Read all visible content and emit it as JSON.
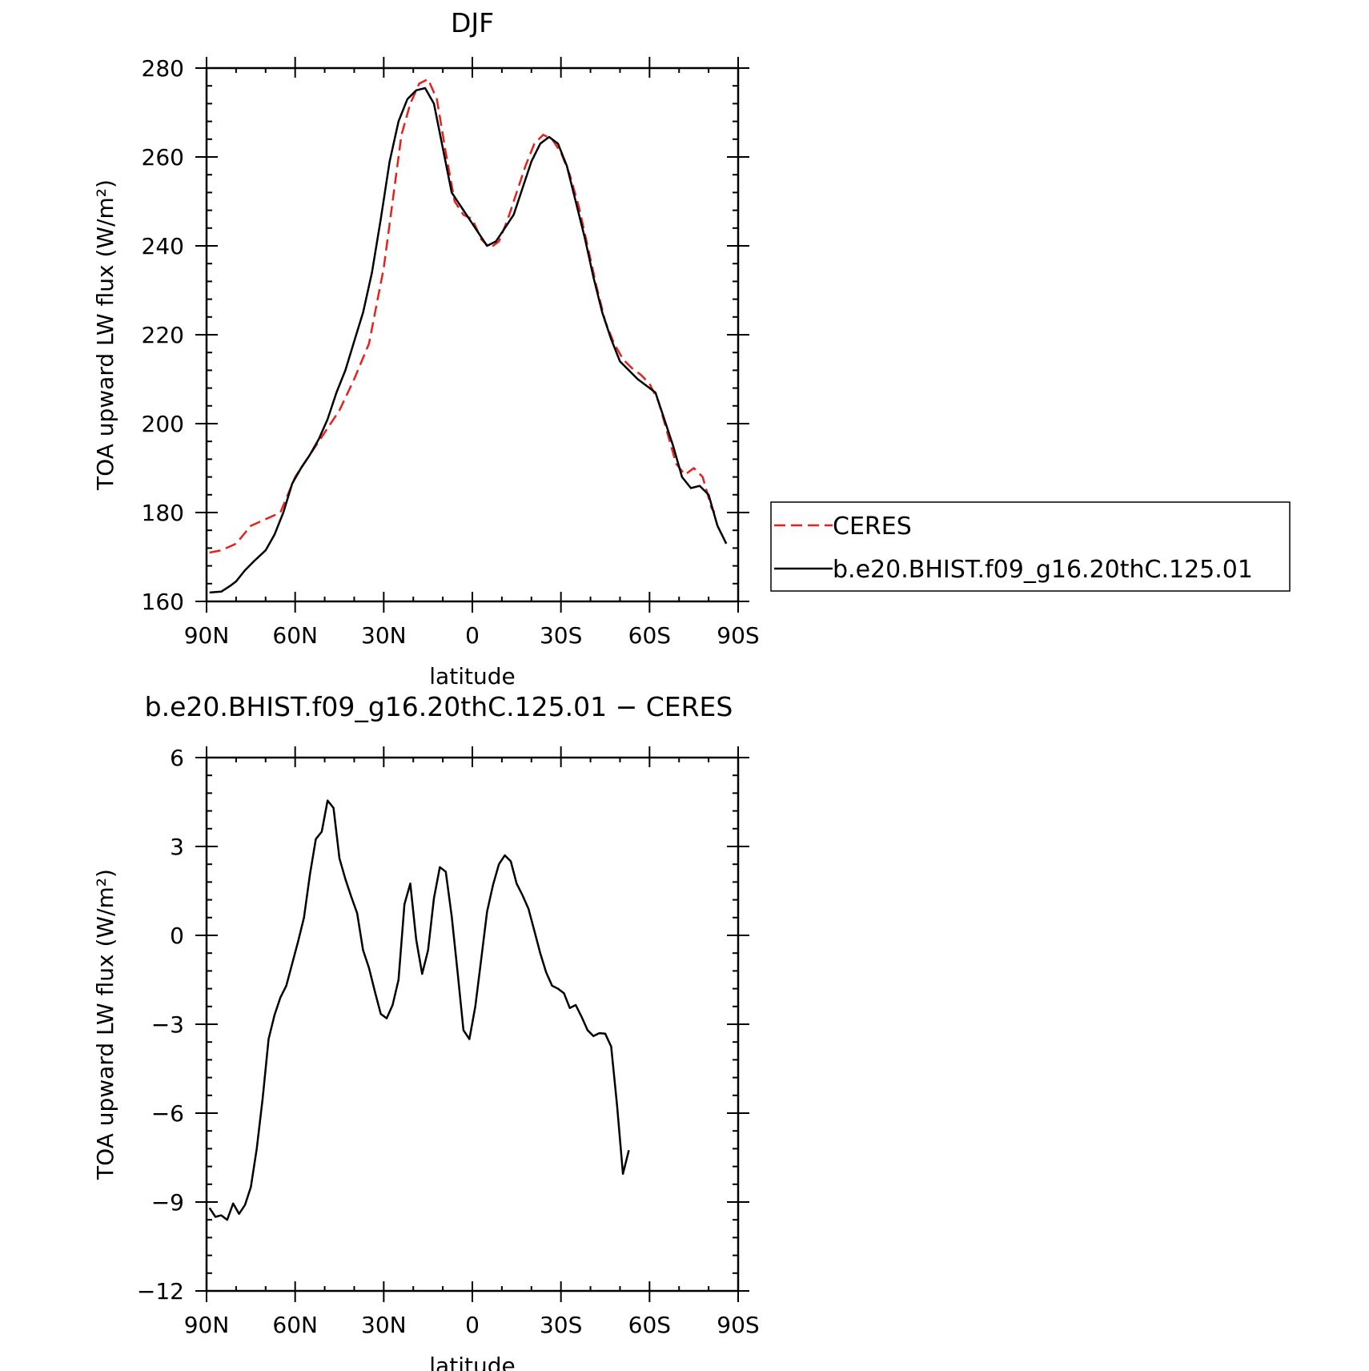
{
  "chart_data": [
    {
      "type": "line",
      "title": "DJF",
      "xlabel": "latitude",
      "ylabel": "TOA upward LW flux (W/m²)",
      "xlim": [
        90,
        -90
      ],
      "ylim": [
        160,
        280
      ],
      "xticks": [
        90,
        60,
        30,
        0,
        -30,
        -60,
        -90
      ],
      "xtick_labels": [
        "90N",
        "60N",
        "30N",
        "0",
        "30S",
        "60S",
        "90S"
      ],
      "yticks": [
        160,
        180,
        200,
        220,
        240,
        260,
        280
      ],
      "ytick_labels": [
        "160",
        "180",
        "200",
        "220",
        "240",
        "260",
        "280"
      ],
      "legend": {
        "placement": "right",
        "entries": [
          "CERES",
          "b.e20.BHIST.f09_g16.20thC.125.01"
        ]
      },
      "series": [
        {
          "name": "CERES",
          "color": "#e8201c",
          "dash": "dashed",
          "points": [
            [
              89,
              171
            ],
            [
              85,
              171.5
            ],
            [
              80,
              173
            ],
            [
              75,
              177
            ],
            [
              70,
              178.5
            ],
            [
              65,
              180
            ],
            [
              60,
              188
            ],
            [
              55,
              193
            ],
            [
              50,
              198
            ],
            [
              45,
              203
            ],
            [
              40,
              210
            ],
            [
              35,
              218
            ],
            [
              30,
              235
            ],
            [
              27,
              250
            ],
            [
              24,
              265
            ],
            [
              21,
              272
            ],
            [
              18,
              276.5
            ],
            [
              15,
              277.5
            ],
            [
              12,
              273
            ],
            [
              9,
              261
            ],
            [
              6,
              250
            ],
            [
              3,
              247
            ],
            [
              0,
              246
            ],
            [
              -3,
              241.5
            ],
            [
              -6,
              239.5
            ],
            [
              -9,
              241
            ],
            [
              -12,
              246
            ],
            [
              -15,
              252
            ],
            [
              -18,
              258
            ],
            [
              -21,
              263
            ],
            [
              -24,
              265
            ],
            [
              -27,
              264
            ],
            [
              -30,
              261
            ],
            [
              -33,
              256
            ],
            [
              -36,
              249
            ],
            [
              -39,
              240
            ],
            [
              -42,
              231
            ],
            [
              -45,
              223
            ],
            [
              -48,
              218
            ],
            [
              -51,
              214.5
            ],
            [
              -54,
              212.5
            ],
            [
              -57,
              211
            ],
            [
              -60,
              209
            ],
            [
              -63,
              205
            ],
            [
              -66,
              198
            ],
            [
              -69,
              191
            ],
            [
              -72,
              188.5
            ],
            [
              -75,
              190
            ],
            [
              -78,
              188
            ],
            [
              -81,
              181
            ],
            [
              -82,
              180
            ]
          ]
        },
        {
          "name": "b.e20.BHIST.f09_g16.20thC.125.01",
          "color": "#000000",
          "dash": "solid",
          "points": [
            [
              89,
              162
            ],
            [
              85,
              162.2
            ],
            [
              82,
              163.5
            ],
            [
              80,
              164.5
            ],
            [
              77,
              167
            ],
            [
              74,
              169
            ],
            [
              70,
              171.5
            ],
            [
              67,
              175
            ],
            [
              64,
              180
            ],
            [
              61,
              186.5
            ],
            [
              58,
              190
            ],
            [
              55,
              193
            ],
            [
              52,
              196.5
            ],
            [
              49,
              201
            ],
            [
              46,
              207
            ],
            [
              43,
              212
            ],
            [
              40,
              218.5
            ],
            [
              37,
              225
            ],
            [
              34,
              234
            ],
            [
              31,
              246
            ],
            [
              28,
              259
            ],
            [
              25,
              268
            ],
            [
              22,
              273
            ],
            [
              19,
              275
            ],
            [
              16,
              275.5
            ],
            [
              13,
              272
            ],
            [
              10,
              262
            ],
            [
              7,
              252
            ],
            [
              4,
              249
            ],
            [
              1,
              246
            ],
            [
              -2,
              243
            ],
            [
              -5,
              240
            ],
            [
              -8,
              241
            ],
            [
              -11,
              244
            ],
            [
              -14,
              247
            ],
            [
              -17,
              253
            ],
            [
              -20,
              259
            ],
            [
              -23,
              263
            ],
            [
              -26,
              264.5
            ],
            [
              -29,
              263
            ],
            [
              -32,
              258
            ],
            [
              -35,
              250
            ],
            [
              -38,
              242
            ],
            [
              -41,
              233
            ],
            [
              -44,
              225
            ],
            [
              -47,
              219
            ],
            [
              -50,
              214
            ],
            [
              -53,
              212
            ],
            [
              -56,
              210
            ],
            [
              -59,
              208.5
            ],
            [
              -62,
              207
            ],
            [
              -65,
              201
            ],
            [
              -68,
              195
            ],
            [
              -71,
              188
            ],
            [
              -74,
              185.5
            ],
            [
              -77,
              186
            ],
            [
              -80,
              184
            ],
            [
              -83,
              177
            ],
            [
              -86,
              173
            ]
          ]
        }
      ]
    },
    {
      "type": "line",
      "title": "b.e20.BHIST.f09_g16.20thC.125.01 − CERES",
      "xlabel": "latitude",
      "ylabel": "TOA upward LW flux (W/m²)",
      "xlim": [
        90,
        -90
      ],
      "ylim": [
        -12,
        6
      ],
      "xticks": [
        90,
        60,
        30,
        0,
        -30,
        -60,
        -90
      ],
      "xtick_labels": [
        "90N",
        "60N",
        "30N",
        "0",
        "30S",
        "60S",
        "90S"
      ],
      "yticks": [
        -12,
        -9,
        -6,
        -3,
        0,
        3,
        6
      ],
      "ytick_labels": [
        "−12",
        "−9",
        "−6",
        "−3",
        "0",
        "3",
        "6"
      ],
      "series": [
        {
          "color": "#000000",
          "dash": "solid",
          "points": [
            [
              89,
              -9.2
            ],
            [
              87,
              -9.5
            ],
            [
              85,
              -9.45
            ],
            [
              83,
              -9.6
            ],
            [
              81,
              -9.05
            ],
            [
              79,
              -9.4
            ],
            [
              77,
              -9.1
            ],
            [
              75,
              -8.5
            ],
            [
              73,
              -7.2
            ],
            [
              71,
              -5.5
            ],
            [
              69,
              -3.5
            ],
            [
              67,
              -2.7
            ],
            [
              65,
              -2.1
            ],
            [
              63,
              -1.7
            ],
            [
              61,
              -0.95
            ],
            [
              59,
              -0.2
            ],
            [
              57,
              0.6
            ],
            [
              55,
              2.05
            ],
            [
              53,
              3.25
            ],
            [
              51,
              3.5
            ],
            [
              49,
              4.55
            ],
            [
              47,
              4.3
            ],
            [
              45,
              2.6
            ],
            [
              43,
              1.9
            ],
            [
              41,
              1.3
            ],
            [
              39,
              0.75
            ],
            [
              37,
              -0.5
            ],
            [
              35,
              -1.1
            ],
            [
              33,
              -1.9
            ],
            [
              31,
              -2.65
            ],
            [
              29,
              -2.8
            ],
            [
              27,
              -2.35
            ],
            [
              25,
              -1.5
            ],
            [
              23,
              1.05
            ],
            [
              21,
              1.75
            ],
            [
              19,
              -0.15
            ],
            [
              17,
              -1.3
            ],
            [
              15,
              -0.5
            ],
            [
              13,
              1.25
            ],
            [
              11,
              2.3
            ],
            [
              9,
              2.15
            ],
            [
              7,
              0.65
            ],
            [
              5,
              -1.25
            ],
            [
              3,
              -3.2
            ],
            [
              1,
              -3.5
            ],
            [
              -1,
              -2.4
            ],
            [
              -3,
              -0.8
            ],
            [
              -5,
              0.8
            ],
            [
              -7,
              1.7
            ],
            [
              -9,
              2.4
            ],
            [
              -11,
              2.7
            ],
            [
              -13,
              2.5
            ],
            [
              -15,
              1.75
            ],
            [
              -17,
              1.35
            ],
            [
              -19,
              0.9
            ],
            [
              -21,
              0.15
            ],
            [
              -23,
              -0.6
            ],
            [
              -25,
              -1.25
            ],
            [
              -27,
              -1.7
            ],
            [
              -29,
              -1.8
            ],
            [
              -31,
              -1.95
            ],
            [
              -33,
              -2.45
            ],
            [
              -35,
              -2.35
            ],
            [
              -37,
              -2.75
            ],
            [
              -39,
              -3.2
            ],
            [
              -41,
              -3.4
            ],
            [
              -43,
              -3.3
            ],
            [
              -45,
              -3.32
            ],
            [
              -47,
              -3.75
            ],
            [
              -49,
              -5.75
            ],
            [
              -51,
              -8.05
            ],
            [
              -53,
              -7.25
            ]
          ]
        }
      ]
    }
  ]
}
